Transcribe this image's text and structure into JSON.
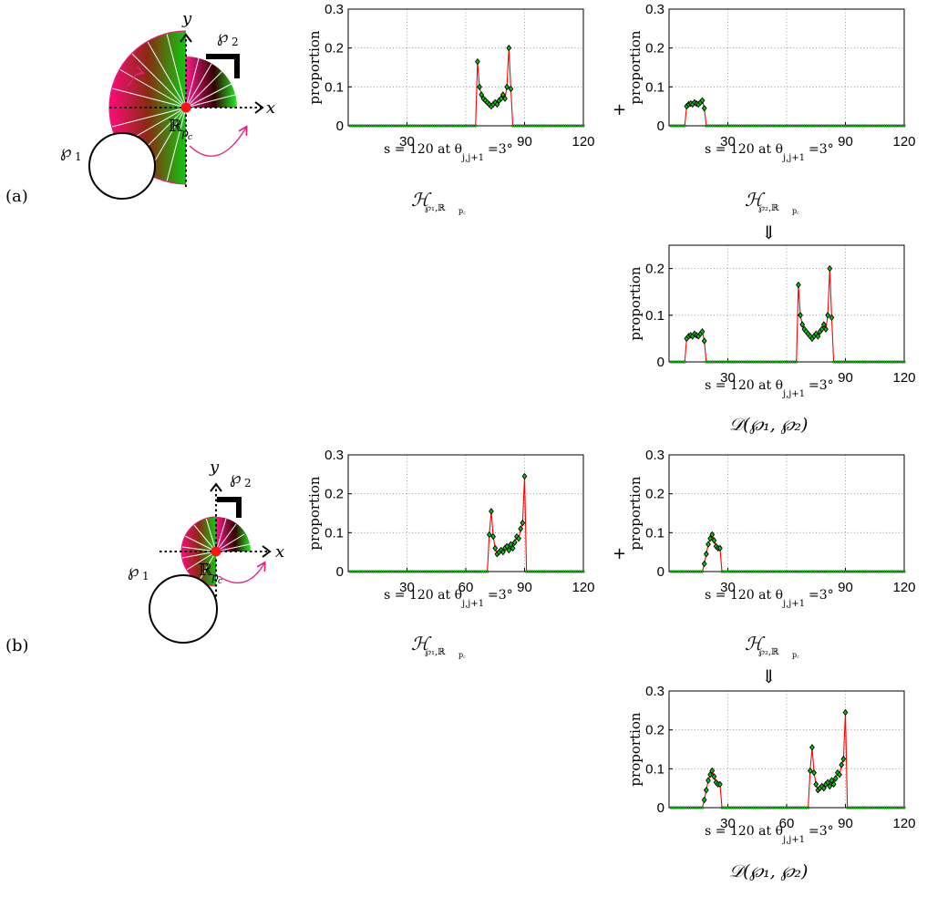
{
  "panels": [
    {
      "label": "(a)",
      "diagram": {
        "y_label": "y",
        "x_label": "x",
        "shape1_label": "℘",
        "shape1_sub": "1",
        "shape2_label": "℘",
        "shape2_sub": "2",
        "region_label": "ℝ",
        "region_sub": "p",
        "region_subsub": "c"
      },
      "hist1_caption": {
        "main": "ℋ",
        "sub": "℘₁,ℝ",
        "subsub": "p꜀"
      },
      "hist2_caption": {
        "main": "ℋ",
        "sub": "℘₂,ℝ",
        "subsub": "p꜀"
      },
      "plus": "+",
      "arrow": "⇓",
      "result_caption": "𝒟(℘₁, ℘₂)"
    },
    {
      "label": "(b)",
      "diagram": {
        "y_label": "y",
        "x_label": "x",
        "shape1_label": "℘",
        "shape1_sub": "1",
        "shape2_label": "℘",
        "shape2_sub": "2",
        "region_label": "ℝ",
        "region_sub": "p",
        "region_subsub": "c"
      },
      "hist1_caption": {
        "main": "ℋ",
        "sub": "℘₁,ℝ",
        "subsub": "p꜀"
      },
      "hist2_caption": {
        "main": "ℋ",
        "sub": "℘₂,ℝ",
        "subsub": "p꜀"
      },
      "plus": "+",
      "arrow": "⇓",
      "result_caption": "𝒟(℘₁, ℘₂)"
    }
  ],
  "colors": {
    "line": "#ff0000",
    "marker_fill": "#00cc00",
    "marker_edge": "#000000",
    "grid": "#888888",
    "arc": "#e0207f"
  },
  "chart_data": [
    {
      "id": "a-h1",
      "type": "line",
      "ylabel": "proportion",
      "xlabel": "s = 120 at θ",
      "xlabel_sub": "j,j+1",
      "xlabel_suffix": "=3°",
      "xlim": [
        0,
        120
      ],
      "ylim": [
        0,
        0.3
      ],
      "xticks": [
        30,
        90,
        120
      ],
      "xticks_extra": [],
      "yticks": [
        0,
        0.1,
        0.2,
        0.3
      ],
      "x": [
        66,
        67,
        68,
        69,
        70,
        71,
        72,
        73,
        74,
        75,
        76,
        77,
        78,
        79,
        80,
        81,
        82,
        83
      ],
      "y": [
        0.165,
        0.1,
        0.08,
        0.07,
        0.065,
        0.06,
        0.055,
        0.05,
        0.055,
        0.06,
        0.055,
        0.065,
        0.07,
        0.08,
        0.07,
        0.1,
        0.2,
        0.095
      ]
    },
    {
      "id": "a-h2",
      "type": "line",
      "ylabel": "proportion",
      "xlabel": "s = 120 at θ",
      "xlabel_sub": "j,j+1",
      "xlabel_suffix": "=3°",
      "xlim": [
        0,
        120
      ],
      "ylim": [
        0,
        0.3
      ],
      "xticks": [
        30,
        90,
        120
      ],
      "xticks_extra": [],
      "yticks": [
        0,
        0.1,
        0.2,
        0.3
      ],
      "x": [
        9,
        10,
        11,
        12,
        13,
        14,
        15,
        16,
        17,
        18
      ],
      "y": [
        0.05,
        0.055,
        0.057,
        0.055,
        0.06,
        0.057,
        0.055,
        0.06,
        0.065,
        0.045
      ]
    },
    {
      "id": "a-d",
      "type": "line",
      "ylabel": "proportion",
      "xlabel": "s = 120 at θ",
      "xlabel_sub": "j,j+1",
      "xlabel_suffix": "=3°",
      "xlim": [
        0,
        120
      ],
      "ylim": [
        0,
        0.25
      ],
      "xticks": [
        30,
        90,
        120
      ],
      "xticks_extra": [],
      "yticks": [
        0,
        0.1,
        0.2
      ],
      "x": [
        9,
        10,
        11,
        12,
        13,
        14,
        15,
        16,
        17,
        18,
        66,
        67,
        68,
        69,
        70,
        71,
        72,
        73,
        74,
        75,
        76,
        77,
        78,
        79,
        80,
        81,
        82,
        83
      ],
      "y": [
        0.05,
        0.055,
        0.057,
        0.055,
        0.06,
        0.057,
        0.055,
        0.06,
        0.065,
        0.045,
        0.165,
        0.1,
        0.08,
        0.07,
        0.065,
        0.06,
        0.055,
        0.05,
        0.055,
        0.06,
        0.055,
        0.065,
        0.07,
        0.08,
        0.07,
        0.1,
        0.2,
        0.095
      ]
    },
    {
      "id": "b-h1",
      "type": "line",
      "ylabel": "proportion",
      "xlabel": "s = 120 at θ",
      "xlabel_sub": "j,j+1",
      "xlabel_suffix": "=3°",
      "xlim": [
        0,
        120
      ],
      "ylim": [
        0,
        0.3
      ],
      "xticks": [
        30,
        90,
        120
      ],
      "xticks_extra": [
        60
      ],
      "yticks": [
        0,
        0.1,
        0.2,
        0.3
      ],
      "x": [
        72,
        73,
        74,
        75,
        76,
        77,
        78,
        79,
        80,
        81,
        82,
        83,
        84,
        85,
        86,
        87,
        88,
        89,
        90
      ],
      "y": [
        0.095,
        0.155,
        0.09,
        0.06,
        0.045,
        0.05,
        0.055,
        0.05,
        0.06,
        0.065,
        0.055,
        0.07,
        0.06,
        0.075,
        0.09,
        0.085,
        0.11,
        0.125,
        0.245
      ]
    },
    {
      "id": "b-h2",
      "type": "line",
      "ylabel": "proportion",
      "xlabel": "s = 120 at θ",
      "xlabel_sub": "j,j+1",
      "xlabel_suffix": "=3°",
      "xlim": [
        0,
        120
      ],
      "ylim": [
        0,
        0.3
      ],
      "xticks": [
        30,
        90,
        120
      ],
      "xticks_extra": [],
      "yticks": [
        0,
        0.1,
        0.2,
        0.3
      ],
      "x": [
        18,
        19,
        20,
        21,
        22,
        23,
        24,
        25,
        26
      ],
      "y": [
        0.02,
        0.045,
        0.07,
        0.085,
        0.095,
        0.08,
        0.065,
        0.06,
        0.06
      ]
    },
    {
      "id": "b-d",
      "type": "line",
      "ylabel": "proportion",
      "xlabel": "s = 120 at θ",
      "xlabel_sub": "j,j+1",
      "xlabel_suffix": "=3°",
      "xlim": [
        0,
        120
      ],
      "ylim": [
        0,
        0.3
      ],
      "xticks": [
        30,
        90,
        120
      ],
      "xticks_extra": [
        60
      ],
      "yticks": [
        0,
        0.1,
        0.2,
        0.3
      ],
      "x": [
        18,
        19,
        20,
        21,
        22,
        23,
        24,
        25,
        26,
        72,
        73,
        74,
        75,
        76,
        77,
        78,
        79,
        80,
        81,
        82,
        83,
        84,
        85,
        86,
        87,
        88,
        89,
        90
      ],
      "y": [
        0.02,
        0.045,
        0.07,
        0.085,
        0.095,
        0.08,
        0.065,
        0.06,
        0.06,
        0.095,
        0.155,
        0.09,
        0.06,
        0.045,
        0.05,
        0.055,
        0.05,
        0.06,
        0.065,
        0.055,
        0.07,
        0.06,
        0.075,
        0.09,
        0.085,
        0.11,
        0.125,
        0.245
      ]
    }
  ]
}
